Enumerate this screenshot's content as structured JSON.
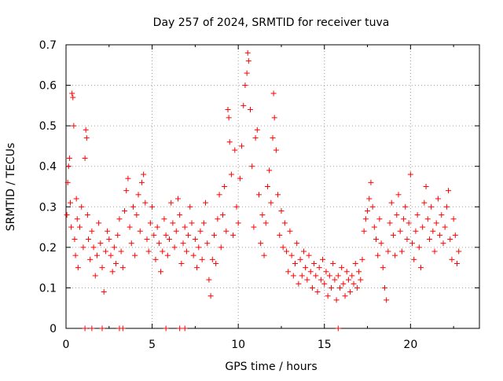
{
  "chart_data": {
    "type": "scatter",
    "title": "Day 257 of 2024, SRMTID for receiver tuva",
    "xlabel": "GPS time / hours",
    "ylabel": "SRMTID / TECUs",
    "xlim": [
      0,
      24
    ],
    "ylim": [
      0,
      0.7
    ],
    "x_ticks": [
      0,
      5,
      10,
      15,
      20
    ],
    "y_ticks": [
      0,
      0.1,
      0.2,
      0.3,
      0.4,
      0.5,
      0.6,
      0.7
    ],
    "x_tick_labels": [
      "0",
      "5",
      "10",
      "15",
      "20"
    ],
    "y_tick_labels": [
      "0",
      "0.1",
      "0.2",
      "0.3",
      "0.4",
      "0.5",
      "0.6",
      "0.7"
    ],
    "grid": true,
    "marker": "plus",
    "color": "#ff0000",
    "series": [
      {
        "name": "SRMTID",
        "points": [
          [
            0.05,
            0.28
          ],
          [
            0.1,
            0.36
          ],
          [
            0.15,
            0.4
          ],
          [
            0.2,
            0.42
          ],
          [
            0.25,
            0.31
          ],
          [
            0.3,
            0.25
          ],
          [
            0.35,
            0.58
          ],
          [
            0.4,
            0.57
          ],
          [
            0.45,
            0.5
          ],
          [
            0.5,
            0.22
          ],
          [
            0.55,
            0.18
          ],
          [
            0.6,
            0.32
          ],
          [
            0.65,
            0.27
          ],
          [
            0.7,
            0.15
          ],
          [
            0.8,
            0.25
          ],
          [
            0.9,
            0.3
          ],
          [
            1.0,
            0.2
          ],
          [
            1.1,
            0.42
          ],
          [
            1.15,
            0.49
          ],
          [
            1.2,
            0.47
          ],
          [
            1.25,
            0.28
          ],
          [
            1.3,
            0.22
          ],
          [
            1.4,
            0.17
          ],
          [
            1.5,
            0.24
          ],
          [
            1.6,
            0.2
          ],
          [
            1.7,
            0.13
          ],
          [
            1.8,
            0.18
          ],
          [
            1.9,
            0.26
          ],
          [
            2.0,
            0.21
          ],
          [
            2.1,
            0.15
          ],
          [
            2.2,
            0.09
          ],
          [
            2.3,
            0.19
          ],
          [
            2.4,
            0.24
          ],
          [
            2.5,
            0.22
          ],
          [
            2.6,
            0.18
          ],
          [
            2.7,
            0.14
          ],
          [
            2.8,
            0.2
          ],
          [
            2.9,
            0.16
          ],
          [
            3.0,
            0.23
          ],
          [
            3.1,
            0.27
          ],
          [
            3.2,
            0.19
          ],
          [
            3.3,
            0.15
          ],
          [
            3.4,
            0.29
          ],
          [
            3.5,
            0.34
          ],
          [
            3.6,
            0.37
          ],
          [
            3.7,
            0.25
          ],
          [
            3.8,
            0.21
          ],
          [
            3.9,
            0.3
          ],
          [
            4.0,
            0.18
          ],
          [
            4.1,
            0.28
          ],
          [
            4.2,
            0.33
          ],
          [
            4.3,
            0.24
          ],
          [
            4.4,
            0.36
          ],
          [
            4.5,
            0.38
          ],
          [
            4.6,
            0.31
          ],
          [
            4.7,
            0.22
          ],
          [
            4.8,
            0.19
          ],
          [
            4.9,
            0.26
          ],
          [
            5.0,
            0.3
          ],
          [
            5.1,
            0.23
          ],
          [
            5.2,
            0.17
          ],
          [
            5.3,
            0.25
          ],
          [
            5.4,
            0.21
          ],
          [
            5.5,
            0.14
          ],
          [
            5.6,
            0.19
          ],
          [
            5.7,
            0.27
          ],
          [
            5.8,
            0.23
          ],
          [
            5.9,
            0.18
          ],
          [
            6.0,
            0.22
          ],
          [
            6.1,
            0.31
          ],
          [
            6.2,
            0.26
          ],
          [
            6.3,
            0.2
          ],
          [
            6.4,
            0.24
          ],
          [
            6.5,
            0.32
          ],
          [
            6.6,
            0.28
          ],
          [
            6.7,
            0.16
          ],
          [
            6.8,
            0.21
          ],
          [
            6.9,
            0.25
          ],
          [
            7.0,
            0.19
          ],
          [
            7.1,
            0.23
          ],
          [
            7.2,
            0.3
          ],
          [
            7.3,
            0.26
          ],
          [
            7.4,
            0.18
          ],
          [
            7.5,
            0.22
          ],
          [
            7.6,
            0.15
          ],
          [
            7.7,
            0.2
          ],
          [
            7.8,
            0.24
          ],
          [
            7.9,
            0.17
          ],
          [
            8.0,
            0.26
          ],
          [
            8.1,
            0.31
          ],
          [
            8.2,
            0.21
          ],
          [
            8.3,
            0.12
          ],
          [
            8.4,
            0.08
          ],
          [
            8.5,
            0.17
          ],
          [
            8.6,
            0.23
          ],
          [
            8.7,
            0.16
          ],
          [
            8.8,
            0.27
          ],
          [
            8.9,
            0.33
          ],
          [
            9.0,
            0.2
          ],
          [
            9.1,
            0.28
          ],
          [
            9.2,
            0.35
          ],
          [
            9.3,
            0.24
          ],
          [
            9.4,
            0.54
          ],
          [
            9.45,
            0.52
          ],
          [
            9.5,
            0.46
          ],
          [
            9.6,
            0.38
          ],
          [
            9.7,
            0.23
          ],
          [
            9.8,
            0.44
          ],
          [
            9.9,
            0.3
          ],
          [
            10.0,
            0.26
          ],
          [
            10.1,
            0.37
          ],
          [
            10.2,
            0.45
          ],
          [
            10.3,
            0.55
          ],
          [
            10.4,
            0.6
          ],
          [
            10.5,
            0.63
          ],
          [
            10.55,
            0.68
          ],
          [
            10.6,
            0.66
          ],
          [
            10.7,
            0.54
          ],
          [
            10.8,
            0.4
          ],
          [
            10.9,
            0.25
          ],
          [
            11.0,
            0.47
          ],
          [
            11.1,
            0.49
          ],
          [
            11.2,
            0.33
          ],
          [
            11.3,
            0.21
          ],
          [
            11.4,
            0.28
          ],
          [
            11.5,
            0.18
          ],
          [
            11.6,
            0.26
          ],
          [
            11.7,
            0.35
          ],
          [
            11.8,
            0.39
          ],
          [
            11.9,
            0.31
          ],
          [
            12.0,
            0.47
          ],
          [
            12.05,
            0.58
          ],
          [
            12.1,
            0.52
          ],
          [
            12.2,
            0.44
          ],
          [
            12.3,
            0.33
          ],
          [
            12.4,
            0.23
          ],
          [
            12.5,
            0.29
          ],
          [
            12.6,
            0.2
          ],
          [
            12.7,
            0.26
          ],
          [
            12.8,
            0.19
          ],
          [
            12.9,
            0.14
          ],
          [
            13.0,
            0.24
          ],
          [
            13.1,
            0.18
          ],
          [
            13.2,
            0.13
          ],
          [
            13.3,
            0.16
          ],
          [
            13.4,
            0.21
          ],
          [
            13.5,
            0.11
          ],
          [
            13.6,
            0.17
          ],
          [
            13.7,
            0.13
          ],
          [
            13.8,
            0.19
          ],
          [
            13.9,
            0.15
          ],
          [
            14.0,
            0.12
          ],
          [
            14.1,
            0.18
          ],
          [
            14.2,
            0.14
          ],
          [
            14.3,
            0.1
          ],
          [
            14.4,
            0.16
          ],
          [
            14.5,
            0.13
          ],
          [
            14.6,
            0.09
          ],
          [
            14.7,
            0.15
          ],
          [
            14.8,
            0.12
          ],
          [
            14.9,
            0.17
          ],
          [
            15.0,
            0.11
          ],
          [
            15.1,
            0.14
          ],
          [
            15.2,
            0.08
          ],
          [
            15.3,
            0.13
          ],
          [
            15.4,
            0.1
          ],
          [
            15.5,
            0.16
          ],
          [
            15.6,
            0.12
          ],
          [
            15.7,
            0.07
          ],
          [
            15.8,
            0.13
          ],
          [
            15.9,
            0.1
          ],
          [
            16.0,
            0.15
          ],
          [
            16.1,
            0.11
          ],
          [
            16.2,
            0.08
          ],
          [
            16.3,
            0.14
          ],
          [
            16.4,
            0.12
          ],
          [
            16.5,
            0.09
          ],
          [
            16.6,
            0.13
          ],
          [
            16.7,
            0.11
          ],
          [
            16.8,
            0.16
          ],
          [
            16.9,
            0.1
          ],
          [
            17.0,
            0.14
          ],
          [
            17.1,
            0.12
          ],
          [
            17.2,
            0.17
          ],
          [
            17.3,
            0.24
          ],
          [
            17.4,
            0.27
          ],
          [
            17.5,
            0.29
          ],
          [
            17.6,
            0.32
          ],
          [
            17.7,
            0.36
          ],
          [
            17.8,
            0.3
          ],
          [
            17.9,
            0.25
          ],
          [
            18.0,
            0.22
          ],
          [
            18.1,
            0.18
          ],
          [
            18.2,
            0.27
          ],
          [
            18.3,
            0.21
          ],
          [
            18.4,
            0.15
          ],
          [
            18.5,
            0.1
          ],
          [
            18.6,
            0.07
          ],
          [
            18.7,
            0.19
          ],
          [
            18.8,
            0.26
          ],
          [
            18.9,
            0.31
          ],
          [
            19.0,
            0.23
          ],
          [
            19.1,
            0.18
          ],
          [
            19.2,
            0.28
          ],
          [
            19.3,
            0.33
          ],
          [
            19.4,
            0.24
          ],
          [
            19.5,
            0.19
          ],
          [
            19.6,
            0.27
          ],
          [
            19.7,
            0.3
          ],
          [
            19.8,
            0.22
          ],
          [
            19.9,
            0.26
          ],
          [
            20.0,
            0.38
          ],
          [
            20.1,
            0.21
          ],
          [
            20.2,
            0.17
          ],
          [
            20.3,
            0.24
          ],
          [
            20.4,
            0.28
          ],
          [
            20.5,
            0.2
          ],
          [
            20.6,
            0.15
          ],
          [
            20.7,
            0.25
          ],
          [
            20.8,
            0.31
          ],
          [
            20.9,
            0.35
          ],
          [
            21.0,
            0.27
          ],
          [
            21.1,
            0.22
          ],
          [
            21.2,
            0.3
          ],
          [
            21.3,
            0.24
          ],
          [
            21.4,
            0.19
          ],
          [
            21.5,
            0.26
          ],
          [
            21.6,
            0.32
          ],
          [
            21.7,
            0.23
          ],
          [
            21.8,
            0.28
          ],
          [
            21.9,
            0.21
          ],
          [
            22.0,
            0.25
          ],
          [
            22.1,
            0.3
          ],
          [
            22.2,
            0.34
          ],
          [
            22.3,
            0.22
          ],
          [
            22.4,
            0.17
          ],
          [
            22.5,
            0.27
          ],
          [
            22.6,
            0.23
          ],
          [
            22.7,
            0.16
          ],
          [
            22.8,
            0.19
          ],
          [
            1.1,
            0.0
          ],
          [
            1.5,
            0.0
          ],
          [
            2.1,
            0.0
          ],
          [
            3.1,
            0.0
          ],
          [
            3.3,
            0.0
          ],
          [
            5.8,
            0.0
          ],
          [
            6.6,
            0.0
          ],
          [
            6.9,
            0.0
          ],
          [
            15.8,
            0.0
          ]
        ]
      }
    ]
  }
}
